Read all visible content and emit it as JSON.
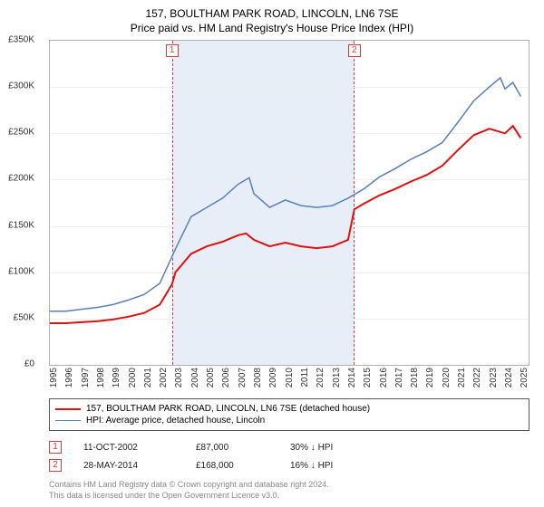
{
  "title": {
    "main": "157, BOULTHAM PARK ROAD, LINCOLN, LN6 7SE",
    "sub": "Price paid vs. HM Land Registry's House Price Index (HPI)"
  },
  "chart": {
    "type": "line",
    "background_color": "#ffffff",
    "grid_color": "#eeeeee",
    "border_color": "#b0b0b0",
    "x_range": [
      1995,
      2025.5
    ],
    "y_range": [
      0,
      350000
    ],
    "y_ticks": [
      0,
      50000,
      100000,
      150000,
      200000,
      250000,
      300000,
      350000
    ],
    "y_tick_labels": [
      "£0",
      "£50K",
      "£100K",
      "£150K",
      "£200K",
      "£250K",
      "£300K",
      "£350K"
    ],
    "x_ticks": [
      1995,
      1996,
      1997,
      1998,
      1999,
      2000,
      2001,
      2002,
      2003,
      2004,
      2005,
      2006,
      2007,
      2008,
      2009,
      2010,
      2011,
      2012,
      2013,
      2014,
      2015,
      2016,
      2017,
      2018,
      2019,
      2020,
      2021,
      2022,
      2023,
      2024,
      2025
    ],
    "tick_fontsize": 10,
    "shade_color": "#e8eef8",
    "shade_border_color": "#d04040",
    "shade_range": [
      2002.78,
      2014.4
    ],
    "markers": [
      {
        "id": "1",
        "x": 2002.78
      },
      {
        "id": "2",
        "x": 2014.4
      }
    ],
    "series": [
      {
        "key": "property",
        "label": "157, BOULTHAM PARK ROAD, LINCOLN, LN6 7SE (detached house)",
        "color": "#e01010",
        "line_width": 2,
        "data": [
          [
            1995,
            45000
          ],
          [
            1996,
            45000
          ],
          [
            1997,
            46000
          ],
          [
            1998,
            47000
          ],
          [
            1999,
            49000
          ],
          [
            2000,
            52000
          ],
          [
            2001,
            56000
          ],
          [
            2002,
            65000
          ],
          [
            2002.78,
            87000
          ],
          [
            2003,
            100000
          ],
          [
            2004,
            120000
          ],
          [
            2005,
            128000
          ],
          [
            2006,
            133000
          ],
          [
            2007,
            140000
          ],
          [
            2007.5,
            142000
          ],
          [
            2008,
            135000
          ],
          [
            2009,
            128000
          ],
          [
            2010,
            132000
          ],
          [
            2011,
            128000
          ],
          [
            2012,
            126000
          ],
          [
            2013,
            128000
          ],
          [
            2014,
            135000
          ],
          [
            2014.4,
            168000
          ],
          [
            2015,
            174000
          ],
          [
            2016,
            183000
          ],
          [
            2017,
            190000
          ],
          [
            2018,
            198000
          ],
          [
            2019,
            205000
          ],
          [
            2020,
            215000
          ],
          [
            2021,
            232000
          ],
          [
            2022,
            248000
          ],
          [
            2023,
            255000
          ],
          [
            2024,
            250000
          ],
          [
            2024.5,
            258000
          ],
          [
            2025,
            245000
          ]
        ]
      },
      {
        "key": "hpi",
        "label": "HPI: Average price, detached house, Lincoln",
        "color": "#5b7fb8",
        "line_width": 1.5,
        "data": [
          [
            1995,
            58000
          ],
          [
            1996,
            58000
          ],
          [
            1997,
            60000
          ],
          [
            1998,
            62000
          ],
          [
            1999,
            65000
          ],
          [
            2000,
            70000
          ],
          [
            2001,
            76000
          ],
          [
            2002,
            88000
          ],
          [
            2003,
            125000
          ],
          [
            2004,
            160000
          ],
          [
            2005,
            170000
          ],
          [
            2006,
            180000
          ],
          [
            2007,
            195000
          ],
          [
            2007.7,
            202000
          ],
          [
            2008,
            185000
          ],
          [
            2009,
            170000
          ],
          [
            2010,
            178000
          ],
          [
            2011,
            172000
          ],
          [
            2012,
            170000
          ],
          [
            2013,
            172000
          ],
          [
            2014,
            180000
          ],
          [
            2015,
            190000
          ],
          [
            2016,
            203000
          ],
          [
            2017,
            212000
          ],
          [
            2018,
            222000
          ],
          [
            2019,
            230000
          ],
          [
            2020,
            240000
          ],
          [
            2021,
            262000
          ],
          [
            2022,
            285000
          ],
          [
            2023,
            300000
          ],
          [
            2023.7,
            310000
          ],
          [
            2024,
            298000
          ],
          [
            2024.5,
            305000
          ],
          [
            2025,
            290000
          ]
        ]
      }
    ]
  },
  "legend": {
    "border_color": "#555555",
    "fontsize": 10,
    "items": [
      {
        "label": "157, BOULTHAM PARK ROAD, LINCOLN, LN6 7SE (detached house)",
        "color": "#e01010",
        "width": 2
      },
      {
        "label": "HPI: Average price, detached house, Lincoln",
        "color": "#5b7fb8",
        "width": 1.5
      }
    ]
  },
  "sales": [
    {
      "marker": "1",
      "date": "11-OCT-2002",
      "price": "£87,000",
      "diff": "30% ↓ HPI"
    },
    {
      "marker": "2",
      "date": "28-MAY-2014",
      "price": "£168,000",
      "diff": "16% ↓ HPI"
    }
  ],
  "footer": {
    "line1": "Contains HM Land Registry data © Crown copyright and database right 2024.",
    "line2": "This data is licensed under the Open Government Licence v3.0."
  }
}
